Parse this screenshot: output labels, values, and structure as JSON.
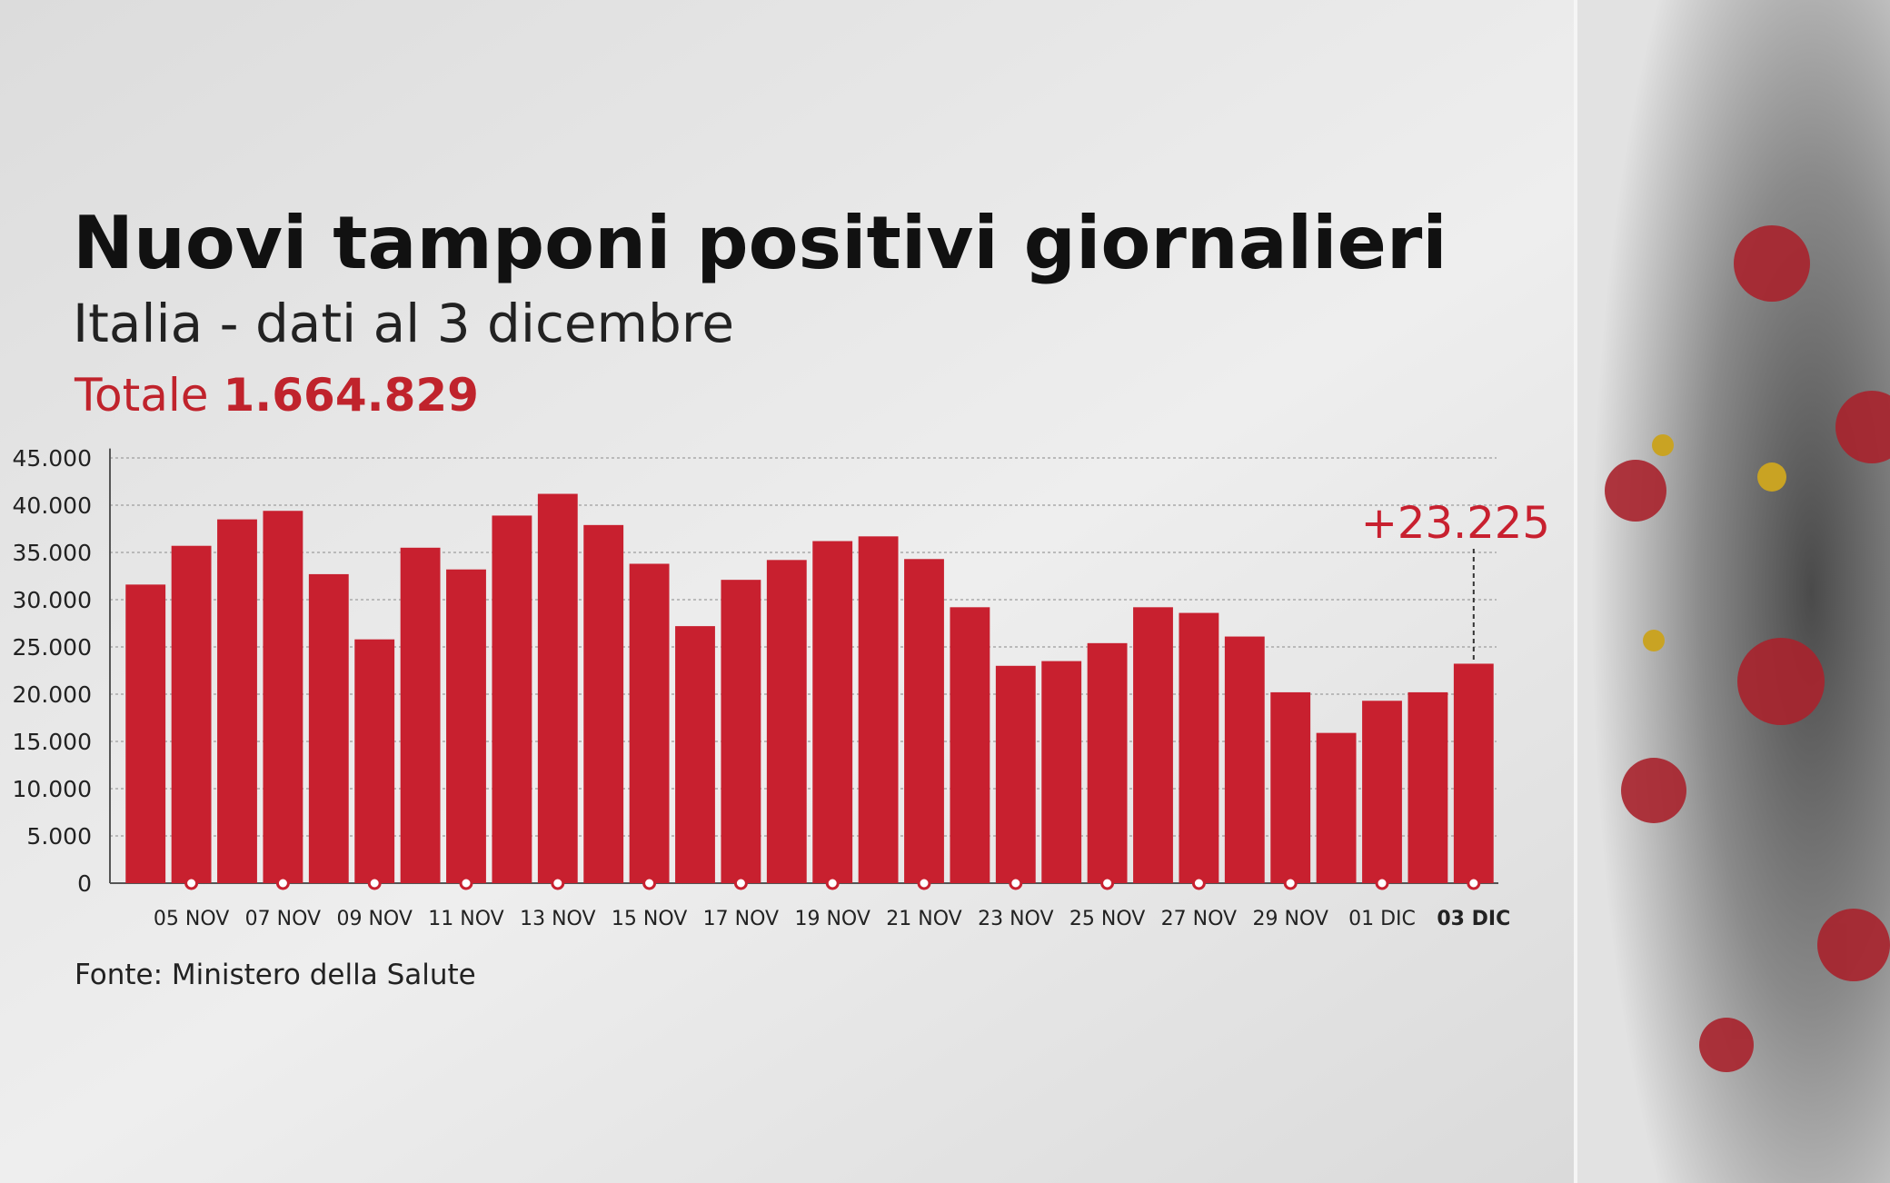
{
  "chart_data": {
    "type": "bar",
    "title": "Nuovi tamponi positivi giornalieri",
    "subtitle": "Italia - dati al 3 dicembre",
    "total_label": "Totale",
    "total_value": "1.664.829",
    "source": "Fonte: Ministero della Salute",
    "categories": [
      null,
      "05 NOV",
      null,
      "07 NOV",
      null,
      "09 NOV",
      null,
      "11 NOV",
      null,
      "13 NOV",
      null,
      "15 NOV",
      null,
      "17 NOV",
      null,
      "19 NOV",
      null,
      "21 NOV",
      null,
      "23 NOV",
      null,
      "25 NOV",
      null,
      "27 NOV",
      null,
      "29 NOV",
      null,
      "01 DIC",
      null,
      "03 DIC"
    ],
    "values": [
      31600,
      35700,
      38500,
      39400,
      32700,
      25800,
      35500,
      33200,
      38900,
      41200,
      37900,
      33800,
      27200,
      32100,
      34200,
      36200,
      36700,
      34300,
      29200,
      23000,
      23500,
      25400,
      29200,
      28600,
      26100,
      20200,
      15900,
      19300,
      20200,
      23225
    ],
    "value_labels": [
      null,
      null,
      null,
      null,
      null,
      null,
      null,
      null,
      null,
      null,
      null,
      null,
      null,
      null,
      null,
      null,
      null,
      null,
      null,
      null,
      null,
      null,
      null,
      null,
      null,
      null,
      null,
      null,
      null,
      "+23.225"
    ],
    "color": "#c8202f",
    "ylim": [
      0,
      46000
    ],
    "yticks": [
      0,
      {
        "value": 5000,
        "label": "5.000"
      },
      {
        "value": 10000,
        "label": "10.000"
      },
      {
        "value": 15000,
        "label": "15.000"
      },
      {
        "value": 20000,
        "label": "20.000"
      },
      {
        "value": 25000,
        "label": "25.000"
      },
      {
        "value": 30000,
        "label": "30.000"
      },
      {
        "value": 35000,
        "label": "35.000"
      },
      {
        "value": 40000,
        "label": "40.000"
      },
      {
        "value": 45000,
        "label": "45.000"
      }
    ],
    "grid": true
  }
}
